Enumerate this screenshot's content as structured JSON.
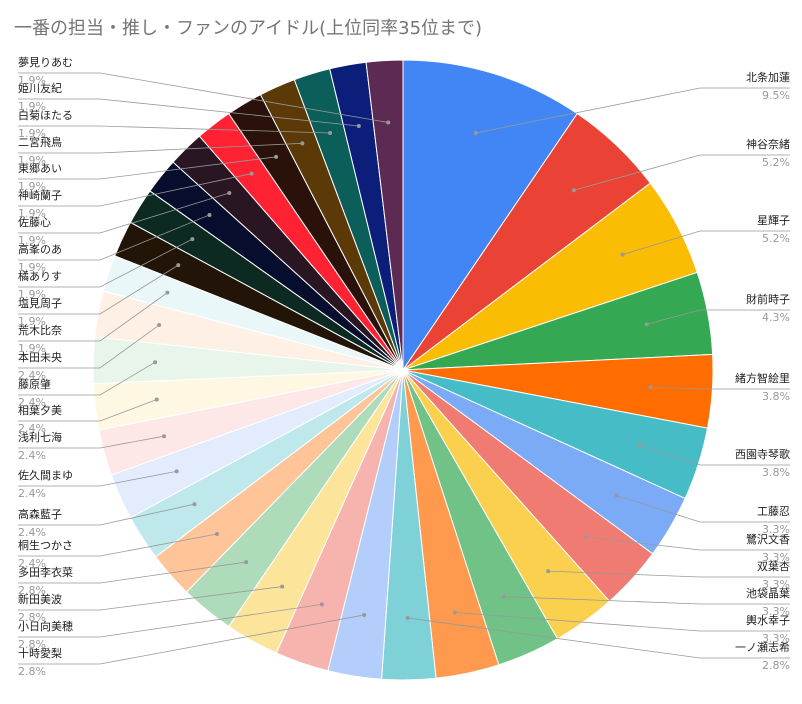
{
  "chart_data": {
    "type": "pie",
    "title": "一番の担当・推し・ファンのアイドル(上位同率35位まで)",
    "categories": [
      "北条加蓮",
      "神谷奈緒",
      "星輝子",
      "財前時子",
      "緒方智絵里",
      "西園寺琴歌",
      "工藤忍",
      "鷺沢文香",
      "双葉杏",
      "池袋晶葉",
      "輿水幸子",
      "一ノ瀬志希",
      "十時愛梨",
      "小日向美穂",
      "新田美波",
      "多田李衣菜",
      "桐生つかさ",
      "高森藍子",
      "佐久間まゆ",
      "浅利七海",
      "相葉夕美",
      "藤原肇",
      "本田未央",
      "荒木比奈",
      "塩見周子",
      "橘ありす",
      "高峯のあ",
      "佐藤心",
      "神崎蘭子",
      "東郷あい",
      "二宮飛鳥",
      "白菊ほたる",
      "姫川友紀",
      "夢見りあむ"
    ],
    "values": [
      9.5,
      5.2,
      5.2,
      4.3,
      3.8,
      3.8,
      3.3,
      3.3,
      3.3,
      3.3,
      3.3,
      2.8,
      2.8,
      2.8,
      2.8,
      2.8,
      2.4,
      2.4,
      2.4,
      2.4,
      2.4,
      2.4,
      2.4,
      1.9,
      1.9,
      1.9,
      1.9,
      1.9,
      1.9,
      1.9,
      1.9,
      1.9,
      1.9,
      1.9
    ],
    "value_labels": [
      "9.5%",
      "5.2%",
      "5.2%",
      "4.3%",
      "3.8%",
      "3.8%",
      "3.3%",
      "3.3%",
      "3.3%",
      "3.3%",
      "3.3%",
      "2.8%",
      "2.8%",
      "2.8%",
      "2.8%",
      "2.8%",
      "2.4%",
      "2.4%",
      "2.4%",
      "2.4%",
      "2.4%",
      "2.4%",
      "2.4%",
      "1.9%",
      "1.9%",
      "1.9%",
      "1.9%",
      "1.9%",
      "1.9%",
      "1.9%",
      "1.9%",
      "1.9%",
      "1.9%",
      "1.9%"
    ],
    "colors": [
      "#4285f4",
      "#ea4335",
      "#fbbc04",
      "#34a853",
      "#ff6d01",
      "#46bdc6",
      "#7baaf7",
      "#f07b72",
      "#fcd04f",
      "#71c287",
      "#ff994d",
      "#7ed1d7",
      "#b3cefb",
      "#f7b4ae",
      "#fde49b",
      "#aedcba",
      "#ffc599",
      "#bee8ec",
      "#e3ecfd",
      "#fde8e7",
      "#fef8e3",
      "#e7f5eb",
      "#fff0e6",
      "#e9f7f8",
      "#221407",
      "#0c2a22",
      "#070d2c",
      "#2a1523",
      "#ff2233",
      "#2a120b",
      "#5b3a08",
      "#0b5e5a",
      "#0b1f7a",
      "#5c2a52"
    ]
  }
}
